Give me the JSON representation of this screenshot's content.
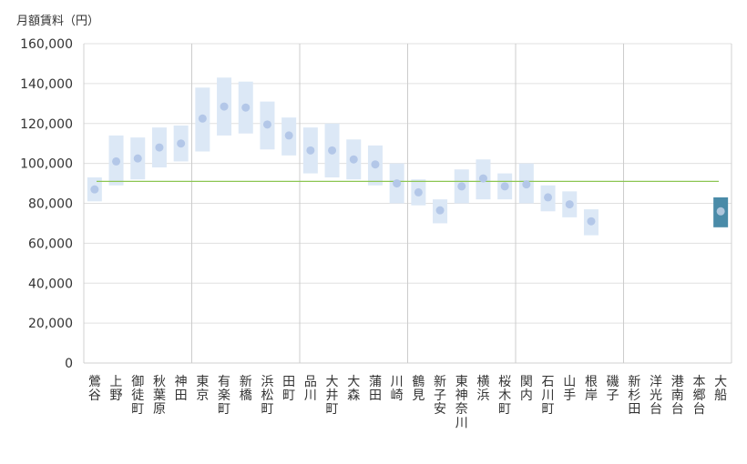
{
  "chart_data": {
    "type": "range-dot",
    "ylabel": "月額賃料（円）",
    "ylim": [
      0,
      160000
    ],
    "yticks": [
      0,
      20000,
      40000,
      60000,
      80000,
      100000,
      120000,
      140000,
      160000
    ],
    "ytick_labels": [
      "0",
      "20,000",
      "40,000",
      "60,000",
      "80,000",
      "100,000",
      "120,000",
      "140,000",
      "160,000"
    ],
    "gridlines": true,
    "group_dividers_after_index": [
      4,
      9,
      14,
      19,
      24
    ],
    "reference_line": 91000,
    "categories": [
      "鶯谷",
      "上野",
      "御徒町",
      "秋葉原",
      "神田",
      "東京",
      "有楽町",
      "新橋",
      "浜松町",
      "田町",
      "品川",
      "大井町",
      "大森",
      "蒲田",
      "川崎",
      "鶴見",
      "新子安",
      "東神奈川",
      "横浜",
      "桜木町",
      "関内",
      "石川町",
      "山手",
      "根岸",
      "磯子",
      "新杉田",
      "洋光台",
      "港南台",
      "本郷台",
      "大船"
    ],
    "series": [
      {
        "name": "min",
        "values": [
          81000,
          89000,
          92000,
          98000,
          101000,
          106000,
          114000,
          115000,
          107000,
          104000,
          95000,
          93000,
          92000,
          89000,
          80000,
          79000,
          70000,
          80000,
          82000,
          82000,
          80000,
          76000,
          73000,
          64000,
          null,
          null,
          null,
          null,
          null,
          68000
        ]
      },
      {
        "name": "max",
        "values": [
          93000,
          114000,
          113000,
          118000,
          119000,
          138000,
          143000,
          141000,
          131000,
          123000,
          118000,
          120000,
          112000,
          109000,
          100000,
          92000,
          82000,
          97000,
          102000,
          95000,
          100000,
          89000,
          86000,
          77000,
          null,
          null,
          null,
          null,
          null,
          83000
        ]
      },
      {
        "name": "average",
        "values": [
          87000,
          101000,
          102500,
          108000,
          110000,
          122500,
          128500,
          128000,
          119500,
          114000,
          106500,
          106500,
          102000,
          99500,
          90000,
          85500,
          76500,
          88500,
          92500,
          88500,
          89500,
          83000,
          79500,
          71000,
          null,
          null,
          null,
          null,
          null,
          76000
        ]
      }
    ],
    "highlight_index": 29,
    "colors": {
      "range_fill": "#dce8f6",
      "dot": "#b3c7e8",
      "highlight_fill": "#4a8ba8",
      "highlight_dot": "#aec6dc",
      "reference_line": "#8dc653",
      "grid": "#e0e0e0",
      "divider": "#cccccc",
      "axis": "#d0d0d0",
      "text": "#333333"
    }
  }
}
